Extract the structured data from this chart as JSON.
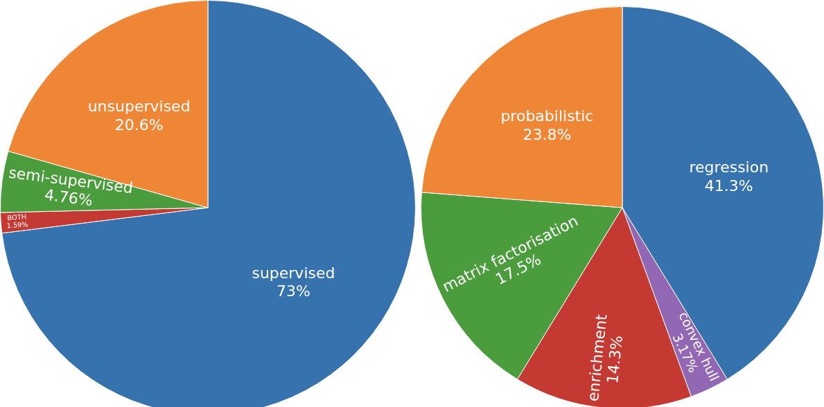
{
  "chart_data": [
    {
      "type": "pie",
      "categories": [
        "supervised",
        "BOTH",
        "semi-supervised",
        "unsupervised"
      ],
      "values": [
        73,
        1.59,
        4.76,
        20.6
      ],
      "value_labels": [
        "73%",
        "1.59%",
        "4.76%",
        "20.6%"
      ],
      "colors": [
        "#3673ae",
        "#c43932",
        "#4a9c3d",
        "#ef8636"
      ],
      "legend": false
    },
    {
      "type": "pie",
      "categories": [
        "regression",
        "convex hull",
        "enrichment",
        "matrix factorisation",
        "probabilistic"
      ],
      "values": [
        41.3,
        3.17,
        14.3,
        17.5,
        23.8
      ],
      "value_labels": [
        "41.3%",
        "3.17%",
        "14.3%",
        "17.5%",
        "23.8%"
      ],
      "colors": [
        "#3673ae",
        "#9268b5",
        "#c43932",
        "#4a9c3d",
        "#ef8636"
      ],
      "legend": false
    }
  ]
}
